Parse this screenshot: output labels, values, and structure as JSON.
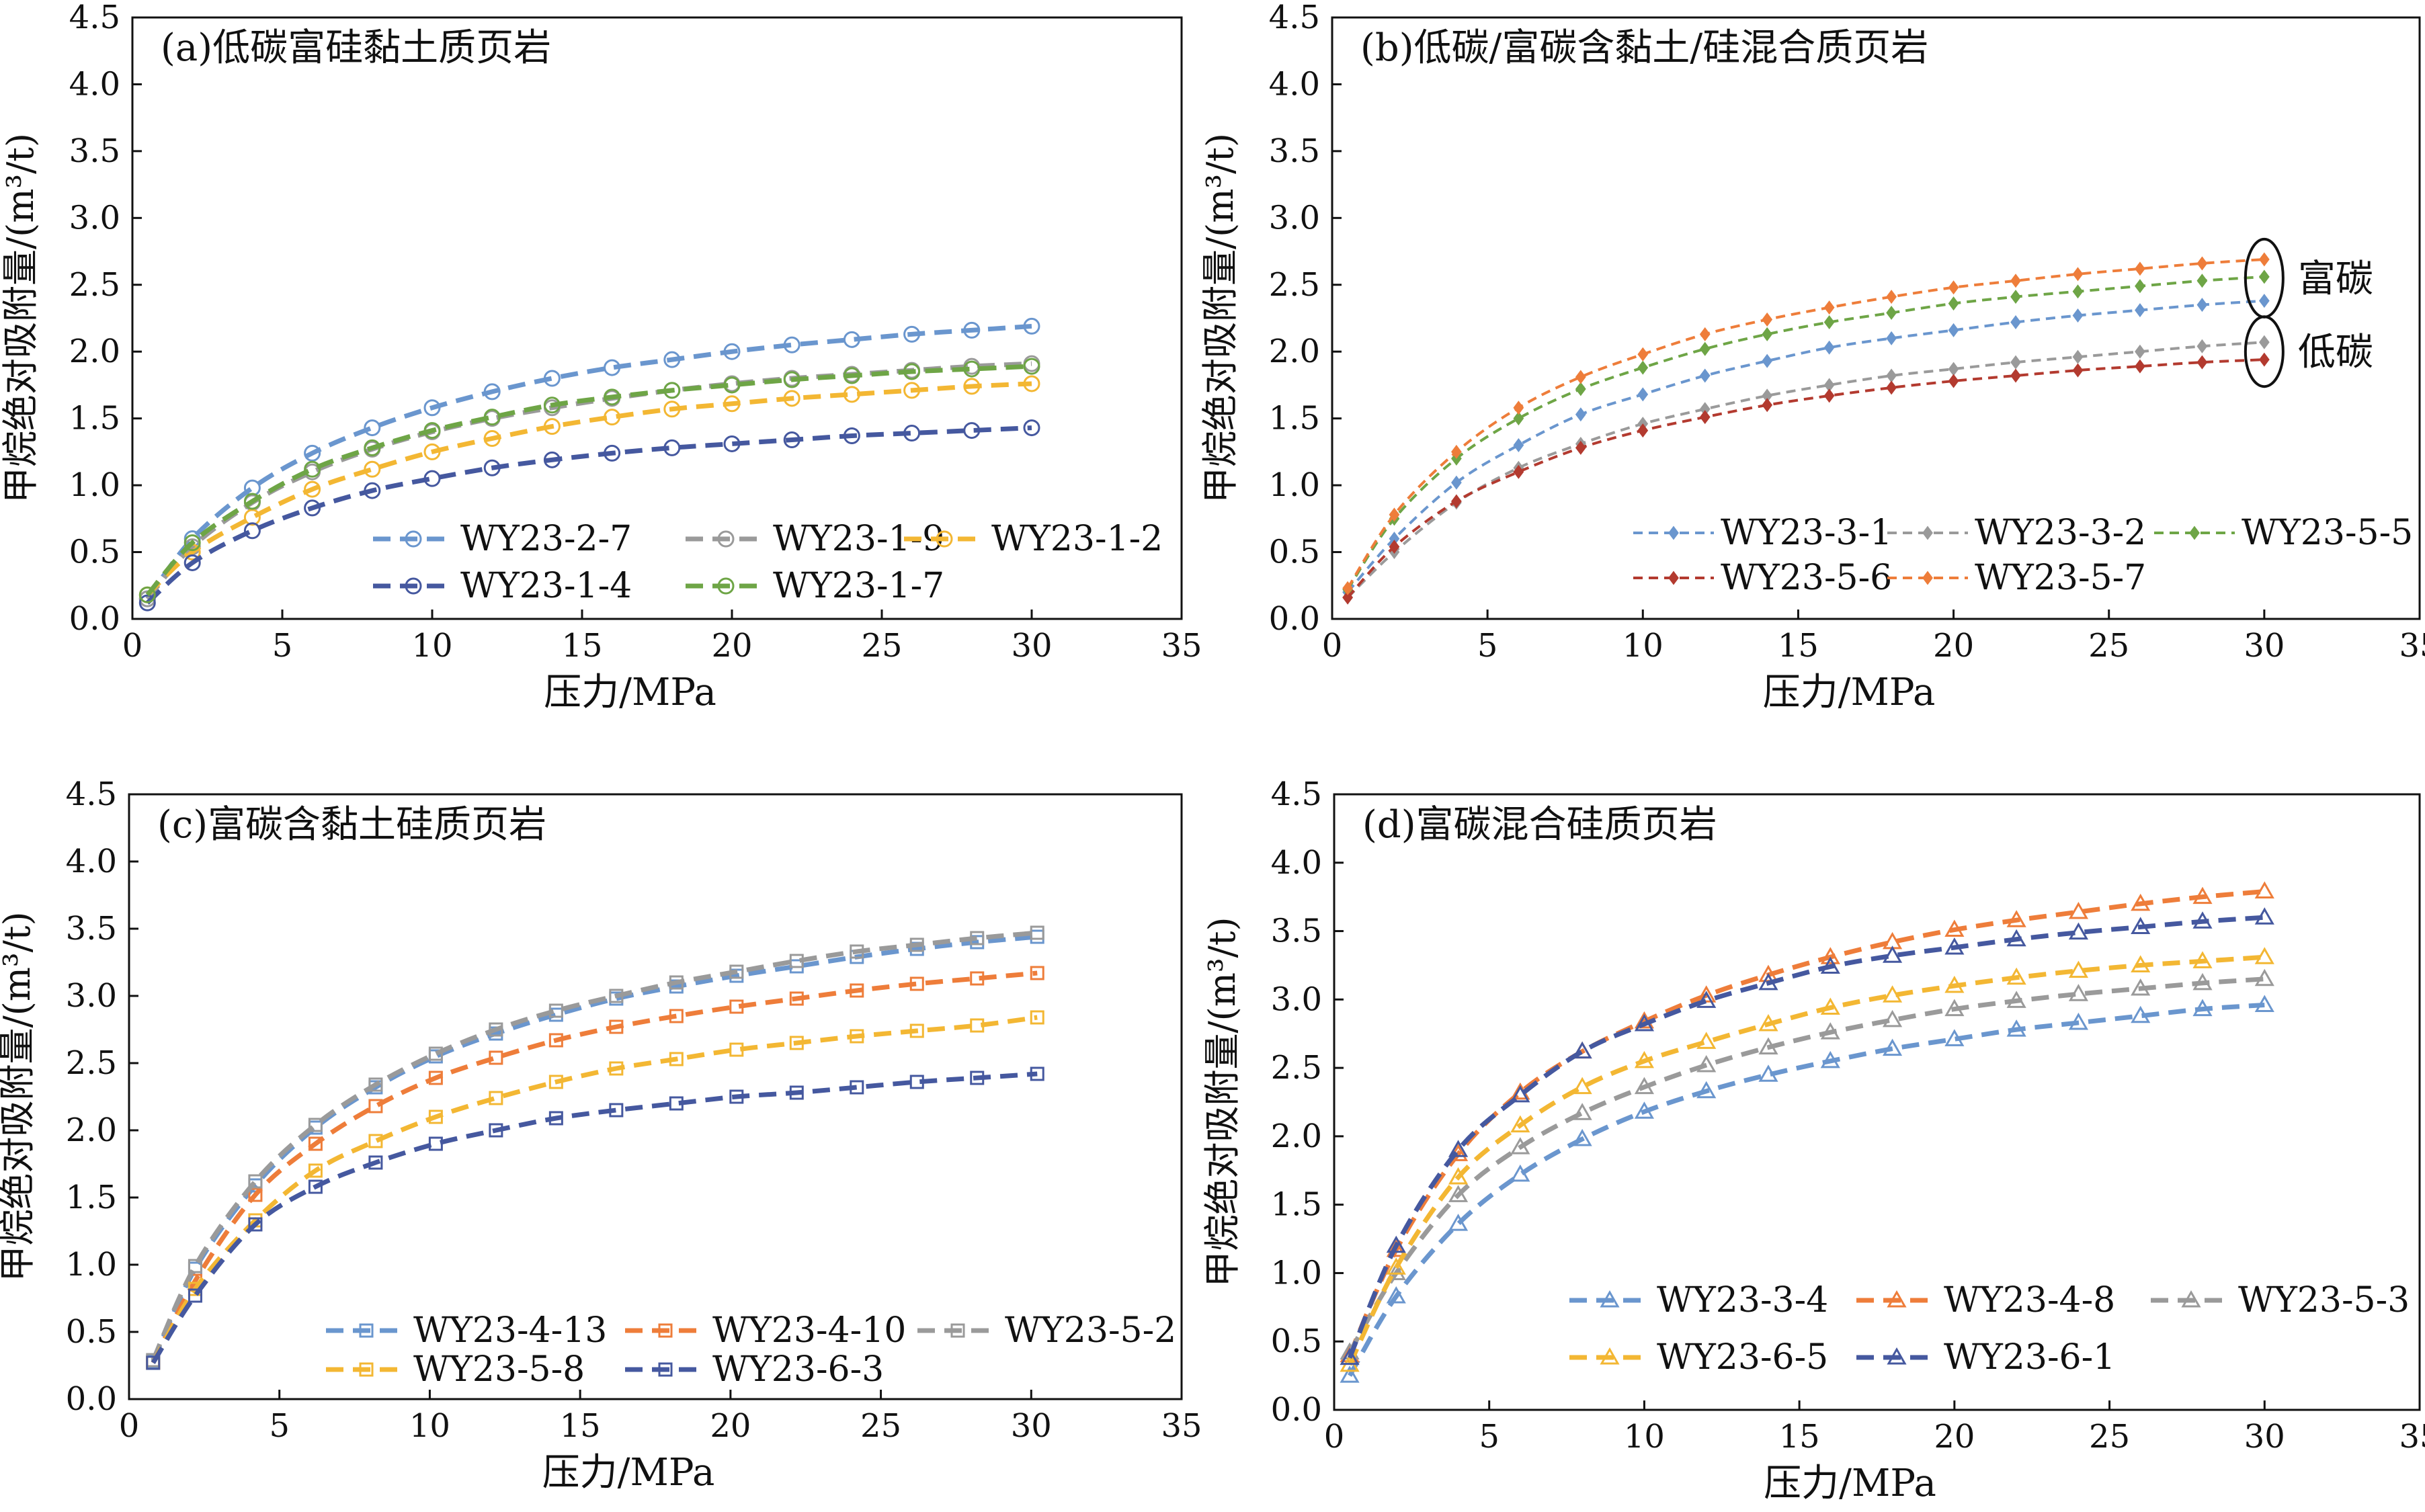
{
  "colors": {
    "c1": "#6a96ce",
    "c2": "#9a9a9a",
    "c3": "#f3b733",
    "c4": "#45589f",
    "c5": "#6ea546",
    "c6": "#ee7d3a",
    "c7": "#b33a2f"
  },
  "chart_data": [
    {
      "id": "a",
      "type": "line",
      "title": "(a)低碳富硅黏土质页岩",
      "xlabel": "压力/MPa",
      "ylabel": "甲烷绝对吸附量/(m³/t)",
      "xlim": [
        0,
        35
      ],
      "ylim": [
        0,
        4.5
      ],
      "xticks": [
        "0",
        "5",
        "10",
        "15",
        "20",
        "25",
        "30",
        "35"
      ],
      "yticks": [
        "0.0",
        "0.5",
        "1.0",
        "1.5",
        "2.0",
        "2.5",
        "3.0",
        "3.5",
        "4.0",
        "4.5"
      ],
      "marker": "circle",
      "legend_columns": 3,
      "legend_placement": "bottom-right",
      "series": [
        {
          "name": "WY23-2-7",
          "color": "c1",
          "x": [
            0.5,
            2,
            4,
            6,
            8,
            10,
            12,
            14,
            16,
            18,
            20,
            22,
            24,
            26,
            28,
            30
          ],
          "y": [
            0.15,
            0.6,
            0.98,
            1.24,
            1.43,
            1.58,
            1.7,
            1.8,
            1.88,
            1.94,
            2.0,
            2.05,
            2.09,
            2.13,
            2.16,
            2.19
          ]
        },
        {
          "name": "WY23-1-9",
          "color": "c2",
          "x": [
            0.5,
            2,
            4,
            6,
            8,
            10,
            12,
            14,
            16,
            18,
            20,
            22,
            24,
            26,
            28,
            30
          ],
          "y": [
            0.15,
            0.54,
            0.87,
            1.1,
            1.27,
            1.4,
            1.5,
            1.58,
            1.65,
            1.71,
            1.76,
            1.8,
            1.83,
            1.86,
            1.89,
            1.91
          ]
        },
        {
          "name": "WY23-1-2",
          "color": "c3",
          "x": [
            0.5,
            2,
            4,
            6,
            8,
            10,
            12,
            14,
            16,
            18,
            20,
            22,
            24,
            26,
            28,
            30
          ],
          "y": [
            0.18,
            0.5,
            0.76,
            0.97,
            1.12,
            1.25,
            1.35,
            1.44,
            1.51,
            1.57,
            1.61,
            1.65,
            1.68,
            1.71,
            1.74,
            1.76
          ]
        },
        {
          "name": "WY23-1-4",
          "color": "c4",
          "x": [
            0.5,
            2,
            4,
            6,
            8,
            10,
            12,
            14,
            16,
            18,
            20,
            22,
            24,
            26,
            28,
            30
          ],
          "y": [
            0.12,
            0.42,
            0.66,
            0.83,
            0.96,
            1.05,
            1.13,
            1.19,
            1.24,
            1.28,
            1.31,
            1.34,
            1.37,
            1.39,
            1.41,
            1.43
          ]
        },
        {
          "name": "WY23-1-7",
          "color": "c5",
          "x": [
            0.5,
            2,
            4,
            6,
            8,
            10,
            12,
            14,
            16,
            18,
            20,
            22,
            24,
            26,
            28,
            30
          ],
          "y": [
            0.18,
            0.57,
            0.88,
            1.12,
            1.28,
            1.41,
            1.51,
            1.6,
            1.66,
            1.71,
            1.75,
            1.79,
            1.82,
            1.85,
            1.87,
            1.89
          ]
        }
      ]
    },
    {
      "id": "b",
      "type": "line",
      "title": "(b)低碳/富碳含黏土/硅混合质页岩",
      "xlabel": "压力/MPa",
      "ylabel": "甲烷绝对吸附量/(m³/t)",
      "xlim": [
        0,
        35
      ],
      "ylim": [
        0,
        4.5
      ],
      "xticks": [
        "0",
        "5",
        "10",
        "15",
        "20",
        "25",
        "30",
        "35"
      ],
      "yticks": [
        "0.0",
        "0.5",
        "1.0",
        "1.5",
        "2.0",
        "2.5",
        "3.0",
        "3.5",
        "4.0",
        "4.5"
      ],
      "marker": "diamond",
      "legend_columns": 3,
      "legend_placement": "bottom-right",
      "annotations": [
        "富碳",
        "低碳"
      ],
      "series": [
        {
          "name": "WY23-3-1",
          "color": "c1",
          "x": [
            0.5,
            2,
            4,
            6,
            8,
            10,
            12,
            14,
            16,
            18,
            20,
            22,
            24,
            26,
            28,
            30
          ],
          "y": [
            0.2,
            0.6,
            1.02,
            1.3,
            1.53,
            1.68,
            1.82,
            1.93,
            2.03,
            2.1,
            2.16,
            2.22,
            2.27,
            2.31,
            2.35,
            2.38
          ]
        },
        {
          "name": "WY23-3-2",
          "color": "c2",
          "x": [
            0.5,
            2,
            4,
            6,
            8,
            10,
            12,
            14,
            16,
            18,
            20,
            22,
            24,
            26,
            28,
            30
          ],
          "y": [
            0.16,
            0.5,
            0.87,
            1.13,
            1.31,
            1.46,
            1.57,
            1.67,
            1.75,
            1.82,
            1.87,
            1.92,
            1.96,
            2.0,
            2.04,
            2.07
          ]
        },
        {
          "name": "WY23-5-5",
          "color": "c5",
          "x": [
            0.5,
            2,
            4,
            6,
            8,
            10,
            12,
            14,
            16,
            18,
            20,
            22,
            24,
            26,
            28,
            30
          ],
          "y": [
            0.22,
            0.75,
            1.2,
            1.5,
            1.72,
            1.88,
            2.02,
            2.13,
            2.22,
            2.29,
            2.36,
            2.41,
            2.45,
            2.49,
            2.53,
            2.56
          ]
        },
        {
          "name": "WY23-5-6",
          "color": "c7",
          "x": [
            0.5,
            2,
            4,
            6,
            8,
            10,
            12,
            14,
            16,
            18,
            20,
            22,
            24,
            26,
            28,
            30
          ],
          "y": [
            0.16,
            0.54,
            0.88,
            1.1,
            1.28,
            1.41,
            1.51,
            1.6,
            1.67,
            1.73,
            1.78,
            1.82,
            1.86,
            1.89,
            1.92,
            1.94
          ]
        },
        {
          "name": "WY23-5-7",
          "color": "c6",
          "x": [
            0.5,
            2,
            4,
            6,
            8,
            10,
            12,
            14,
            16,
            18,
            20,
            22,
            24,
            26,
            28,
            30
          ],
          "y": [
            0.23,
            0.78,
            1.25,
            1.58,
            1.81,
            1.98,
            2.13,
            2.24,
            2.33,
            2.41,
            2.48,
            2.53,
            2.58,
            2.62,
            2.66,
            2.69
          ]
        }
      ]
    },
    {
      "id": "c",
      "type": "line",
      "title": "(c)富碳含黏土硅质页岩",
      "xlabel": "压力/MPa",
      "ylabel": "甲烷绝对吸附量/(m³/t)",
      "xlim": [
        0,
        35
      ],
      "ylim": [
        0,
        4.5
      ],
      "xticks": [
        "0",
        "5",
        "10",
        "15",
        "20",
        "25",
        "30",
        "35"
      ],
      "yticks": [
        "0.0",
        "0.5",
        "1.0",
        "1.5",
        "2.0",
        "2.5",
        "3.0",
        "3.5",
        "4.0",
        "4.5"
      ],
      "marker": "square",
      "legend_columns": 3,
      "legend_placement": "bottom-right",
      "series": [
        {
          "name": "WY23-4-13",
          "color": "c1",
          "x": [
            0.8,
            2.2,
            4.2,
            6.2,
            8.2,
            10.2,
            12.2,
            14.2,
            16.2,
            18.2,
            20.2,
            22.2,
            24.2,
            26.2,
            28.2,
            30.2
          ],
          "y": [
            0.28,
            0.97,
            1.59,
            2.02,
            2.32,
            2.55,
            2.72,
            2.86,
            2.98,
            3.07,
            3.15,
            3.22,
            3.29,
            3.35,
            3.4,
            3.44
          ]
        },
        {
          "name": "WY23-4-10",
          "color": "c6",
          "x": [
            0.8,
            2.2,
            4.2,
            6.2,
            8.2,
            10.2,
            12.2,
            14.2,
            16.2,
            18.2,
            20.2,
            22.2,
            24.2,
            26.2,
            28.2,
            30.2
          ],
          "y": [
            0.27,
            0.88,
            1.52,
            1.9,
            2.18,
            2.39,
            2.54,
            2.67,
            2.77,
            2.85,
            2.92,
            2.98,
            3.04,
            3.09,
            3.13,
            3.17
          ]
        },
        {
          "name": "WY23-5-2",
          "color": "c2",
          "x": [
            0.8,
            2.2,
            4.2,
            6.2,
            8.2,
            10.2,
            12.2,
            14.2,
            16.2,
            18.2,
            20.2,
            22.2,
            24.2,
            26.2,
            28.2,
            30.2
          ],
          "y": [
            0.29,
            0.99,
            1.62,
            2.04,
            2.34,
            2.57,
            2.75,
            2.89,
            3.0,
            3.1,
            3.18,
            3.26,
            3.33,
            3.38,
            3.43,
            3.47
          ]
        },
        {
          "name": "WY23-5-8",
          "color": "c3",
          "x": [
            0.8,
            2.2,
            4.2,
            6.2,
            8.2,
            10.2,
            12.2,
            14.2,
            16.2,
            18.2,
            20.2,
            22.2,
            24.2,
            26.2,
            28.2,
            30.2
          ],
          "y": [
            0.27,
            0.82,
            1.33,
            1.7,
            1.92,
            2.1,
            2.24,
            2.36,
            2.46,
            2.53,
            2.6,
            2.65,
            2.7,
            2.74,
            2.78,
            2.84
          ]
        },
        {
          "name": "WY23-6-3",
          "color": "c4",
          "x": [
            0.8,
            2.2,
            4.2,
            6.2,
            8.2,
            10.2,
            12.2,
            14.2,
            16.2,
            18.2,
            20.2,
            22.2,
            24.2,
            26.2,
            28.2,
            30.2
          ],
          "y": [
            0.27,
            0.77,
            1.3,
            1.58,
            1.76,
            1.9,
            2.0,
            2.09,
            2.15,
            2.2,
            2.25,
            2.28,
            2.32,
            2.36,
            2.39,
            2.42
          ]
        }
      ]
    },
    {
      "id": "d",
      "type": "line",
      "title": "(d)富碳混合硅质页岩",
      "xlabel": "压力/MPa",
      "ylabel": "甲烷绝对吸附量/(m³/t)",
      "xlim": [
        0,
        35
      ],
      "ylim": [
        0,
        4.5
      ],
      "xticks": [
        "0",
        "5",
        "10",
        "15",
        "20",
        "25",
        "30",
        "35"
      ],
      "yticks": [
        "0.0",
        "0.5",
        "1.0",
        "1.5",
        "2.0",
        "2.5",
        "3.0",
        "3.5",
        "4.0",
        "4.5"
      ],
      "marker": "triangle",
      "legend_columns": 3,
      "legend_placement": "bottom-right",
      "series": [
        {
          "name": "WY23-3-4",
          "color": "c1",
          "x": [
            0.5,
            2,
            4,
            6,
            8,
            10,
            12,
            14,
            16,
            18,
            20,
            22,
            24,
            26,
            28,
            30
          ],
          "y": [
            0.25,
            0.83,
            1.36,
            1.72,
            1.98,
            2.18,
            2.33,
            2.45,
            2.55,
            2.64,
            2.71,
            2.78,
            2.83,
            2.88,
            2.93,
            2.96
          ]
        },
        {
          "name": "WY23-4-8",
          "color": "c6",
          "x": [
            0.5,
            2,
            4,
            6,
            8,
            10,
            12,
            14,
            16,
            18,
            20,
            22,
            24,
            26,
            28,
            30
          ],
          "y": [
            0.4,
            1.17,
            1.87,
            2.32,
            2.62,
            2.84,
            3.03,
            3.18,
            3.31,
            3.42,
            3.51,
            3.58,
            3.64,
            3.7,
            3.75,
            3.79
          ]
        },
        {
          "name": "WY23-5-3",
          "color": "c2",
          "x": [
            0.5,
            2,
            4,
            6,
            8,
            10,
            12,
            14,
            16,
            18,
            20,
            22,
            24,
            26,
            28,
            30
          ],
          "y": [
            0.42,
            1.0,
            1.57,
            1.92,
            2.17,
            2.36,
            2.52,
            2.65,
            2.76,
            2.85,
            2.93,
            2.99,
            3.04,
            3.08,
            3.12,
            3.15
          ]
        },
        {
          "name": "WY23-6-5",
          "color": "c3",
          "x": [
            0.5,
            2,
            4,
            6,
            8,
            10,
            12,
            14,
            16,
            18,
            20,
            22,
            24,
            26,
            28,
            30
          ],
          "y": [
            0.33,
            1.04,
            1.7,
            2.08,
            2.36,
            2.55,
            2.69,
            2.82,
            2.94,
            3.03,
            3.1,
            3.16,
            3.21,
            3.25,
            3.28,
            3.31
          ]
        },
        {
          "name": "WY23-6-1",
          "color": "c4",
          "x": [
            0.5,
            2,
            4,
            6,
            8,
            10,
            12,
            14,
            16,
            18,
            20,
            22,
            24,
            26,
            28,
            30
          ],
          "y": [
            0.38,
            1.2,
            1.9,
            2.3,
            2.62,
            2.82,
            2.99,
            3.12,
            3.24,
            3.32,
            3.38,
            3.44,
            3.49,
            3.53,
            3.57,
            3.6
          ]
        }
      ]
    }
  ]
}
